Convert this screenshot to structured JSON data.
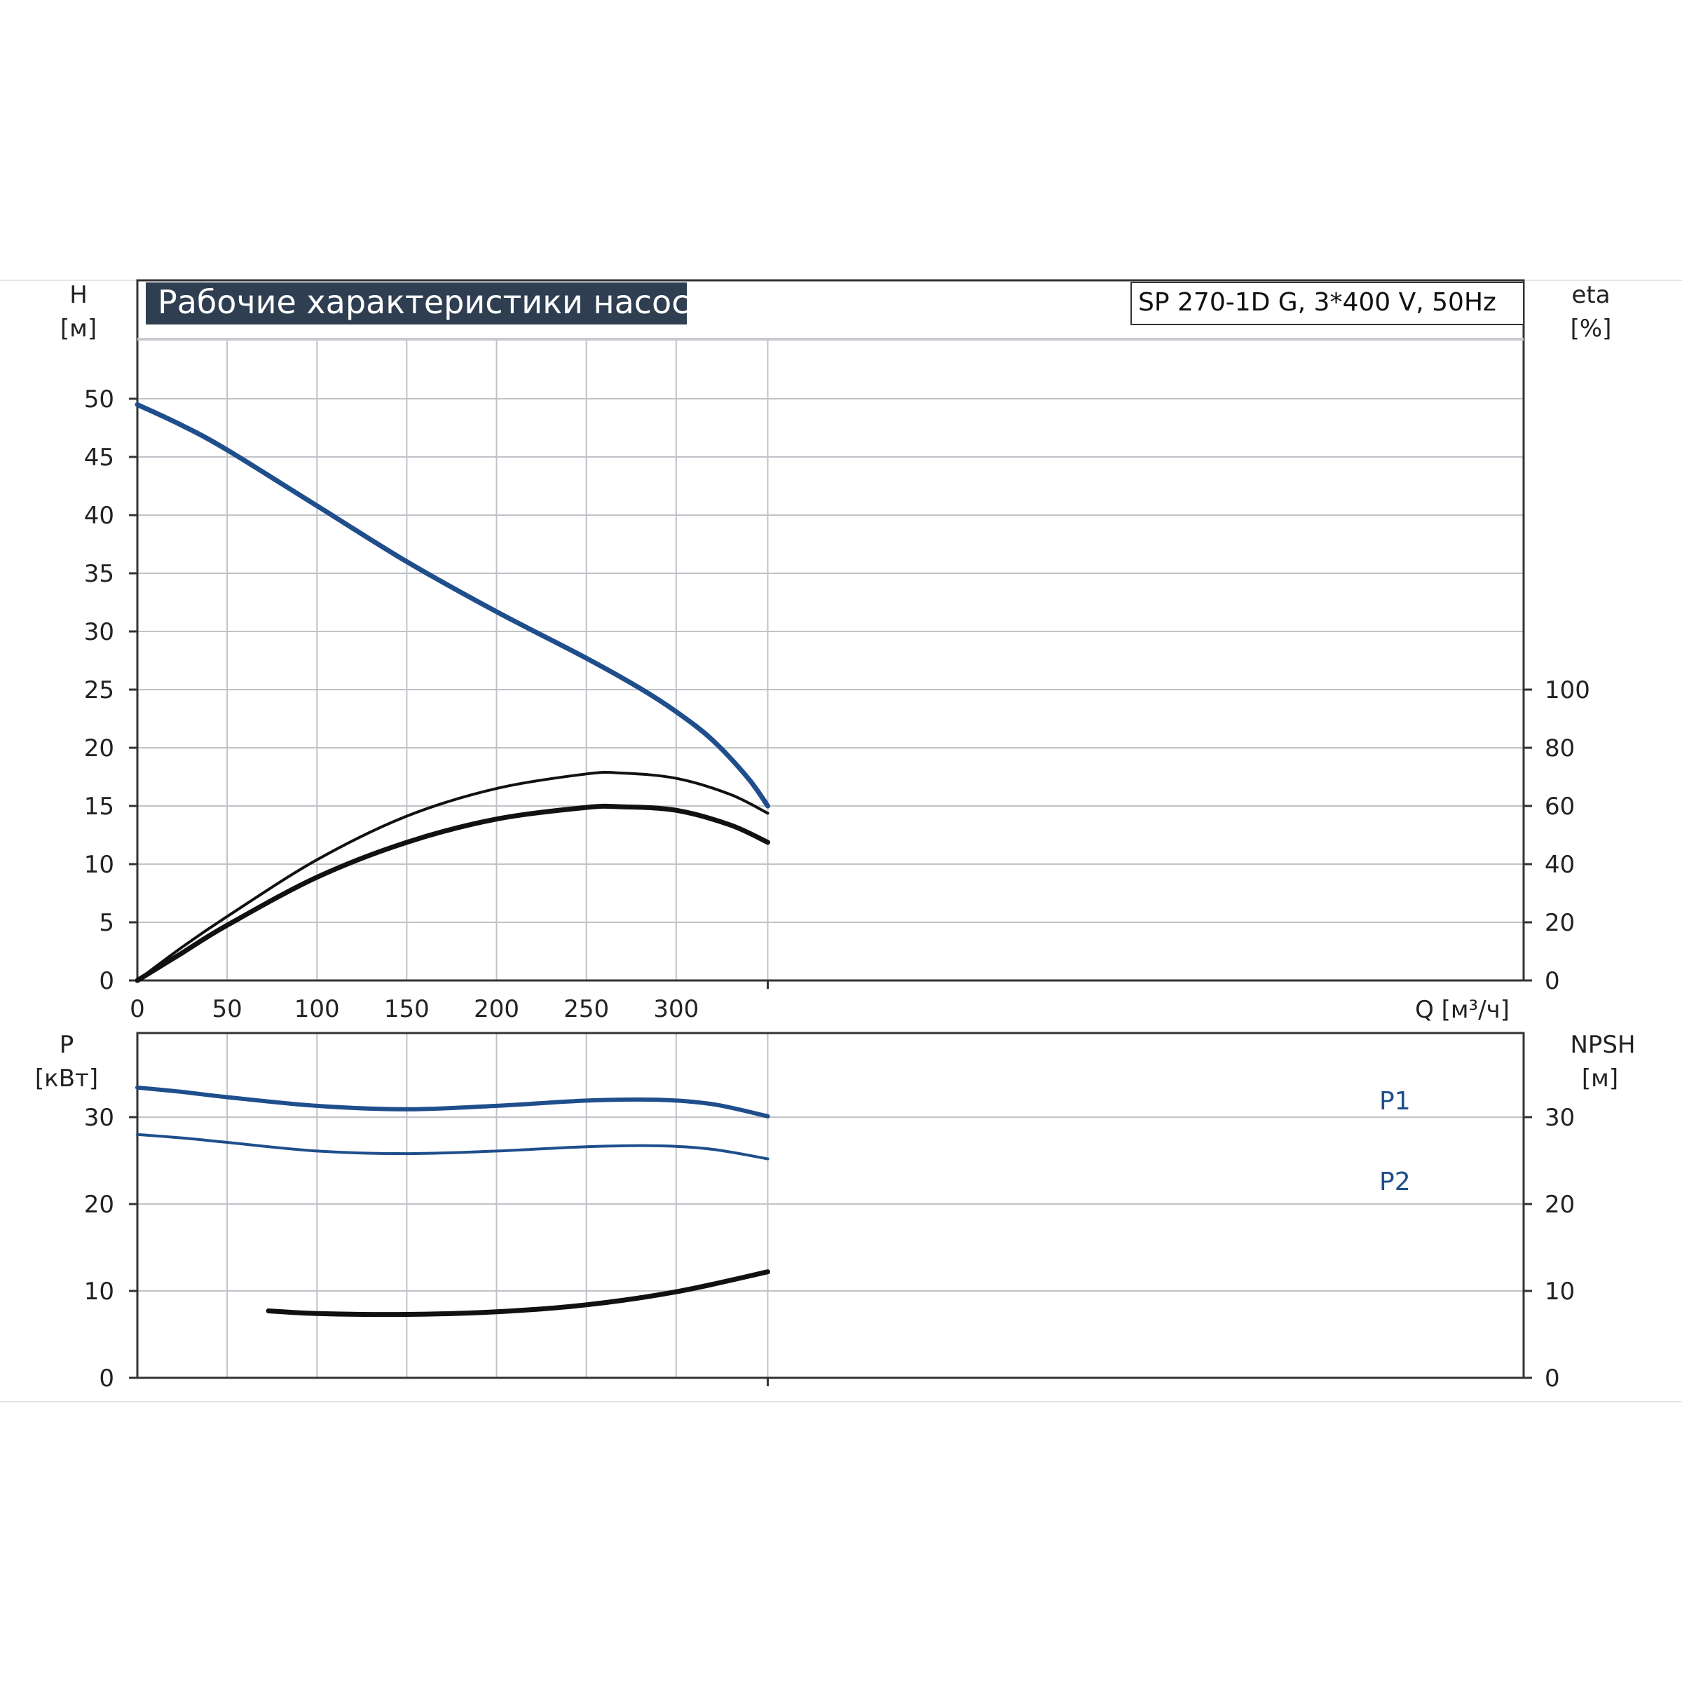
{
  "title": "Рабочие характеристики насоса",
  "model": "SP 270-1D G, 3*400 V, 50Hz",
  "colors": {
    "blue": "#1f4e8c",
    "black": "#111111",
    "grid": "#bfc3c8",
    "frame": "#333333",
    "title_bg": "#2f3e50"
  },
  "chart_data": [
    {
      "name": "head-efficiency",
      "type": "line",
      "grid": true,
      "x_axis": {
        "label": "Q [м³/ч]",
        "range": [
          0,
          350
        ],
        "ticks": [
          "0",
          "50",
          "100",
          "150",
          "200",
          "250",
          "300"
        ],
        "tick_values": [
          0,
          50,
          100,
          150,
          200,
          250,
          300
        ]
      },
      "y_left": {
        "label_top": "H",
        "label_unit": "[м]",
        "range": [
          0,
          60
        ],
        "ticks": [
          "0",
          "5",
          "10",
          "15",
          "20",
          "25",
          "30",
          "35",
          "40",
          "45",
          "50"
        ],
        "tick_values": [
          0,
          5,
          10,
          15,
          20,
          25,
          30,
          35,
          40,
          45,
          50
        ]
      },
      "y_right": {
        "label_top": "eta",
        "label_unit": "[%]",
        "range": [
          0,
          120
        ],
        "ticks": [
          "0",
          "20",
          "40",
          "60",
          "80",
          "100"
        ],
        "tick_values": [
          0,
          20,
          40,
          60,
          80,
          100
        ]
      },
      "series": [
        {
          "id": "H",
          "axis": "left",
          "color": "blue",
          "x": [
            0,
            25,
            50,
            100,
            150,
            200,
            250,
            280,
            300,
            320,
            340,
            351
          ],
          "y": [
            49.5,
            47.7,
            45.6,
            40.8,
            36.0,
            31.7,
            27.7,
            25.1,
            23.1,
            20.7,
            17.4,
            15.0
          ]
        },
        {
          "id": "eta-pump",
          "axis": "right",
          "color": "black",
          "x": [
            0,
            25,
            50,
            100,
            150,
            200,
            250,
            270,
            300,
            330,
            351
          ],
          "y": [
            0,
            11.5,
            22.0,
            41.5,
            56.5,
            66.0,
            71.0,
            71.3,
            69.5,
            64.0,
            57.5
          ]
        },
        {
          "id": "eta-total",
          "axis": "right",
          "color": "black",
          "x": [
            0,
            25,
            50,
            100,
            150,
            200,
            250,
            270,
            300,
            330,
            351
          ],
          "y": [
            0,
            9.5,
            19.0,
            35.5,
            47.5,
            55.5,
            59.5,
            59.7,
            58.5,
            53.5,
            47.5
          ]
        }
      ]
    },
    {
      "name": "power-npsh",
      "type": "line",
      "grid": true,
      "x_axis": {
        "range": [
          0,
          350
        ],
        "tick_values": [
          0,
          50,
          100,
          150,
          200,
          250,
          300
        ]
      },
      "y_left": {
        "label_top": "P",
        "label_unit": "[кВт]",
        "range": [
          0,
          40
        ],
        "ticks": [
          "0",
          "10",
          "20",
          "30"
        ],
        "tick_values": [
          0,
          10,
          20,
          30
        ]
      },
      "y_right": {
        "label_top": "NPSH",
        "label_unit": "[м]",
        "range": [
          0,
          40
        ],
        "ticks": [
          "0",
          "10",
          "20",
          "30"
        ],
        "tick_values": [
          0,
          10,
          20,
          30
        ]
      },
      "series": [
        {
          "id": "P1",
          "name": "P1",
          "axis": "left",
          "color": "blue",
          "x": [
            0,
            25,
            50,
            100,
            150,
            200,
            250,
            290,
            320,
            351
          ],
          "y": [
            33.4,
            32.9,
            32.3,
            31.3,
            30.9,
            31.3,
            31.9,
            32.0,
            31.5,
            30.1
          ]
        },
        {
          "id": "P2",
          "name": "P2",
          "axis": "left",
          "color": "blue",
          "x": [
            0,
            25,
            50,
            100,
            150,
            200,
            250,
            290,
            320,
            351
          ],
          "y": [
            28.0,
            27.6,
            27.1,
            26.1,
            25.8,
            26.1,
            26.6,
            26.7,
            26.3,
            25.2
          ]
        },
        {
          "id": "NPSH",
          "axis": "right",
          "color": "black",
          "x": [
            73,
            100,
            150,
            200,
            250,
            300,
            351
          ],
          "y": [
            7.7,
            7.4,
            7.3,
            7.6,
            8.4,
            9.9,
            12.2
          ]
        }
      ]
    }
  ]
}
